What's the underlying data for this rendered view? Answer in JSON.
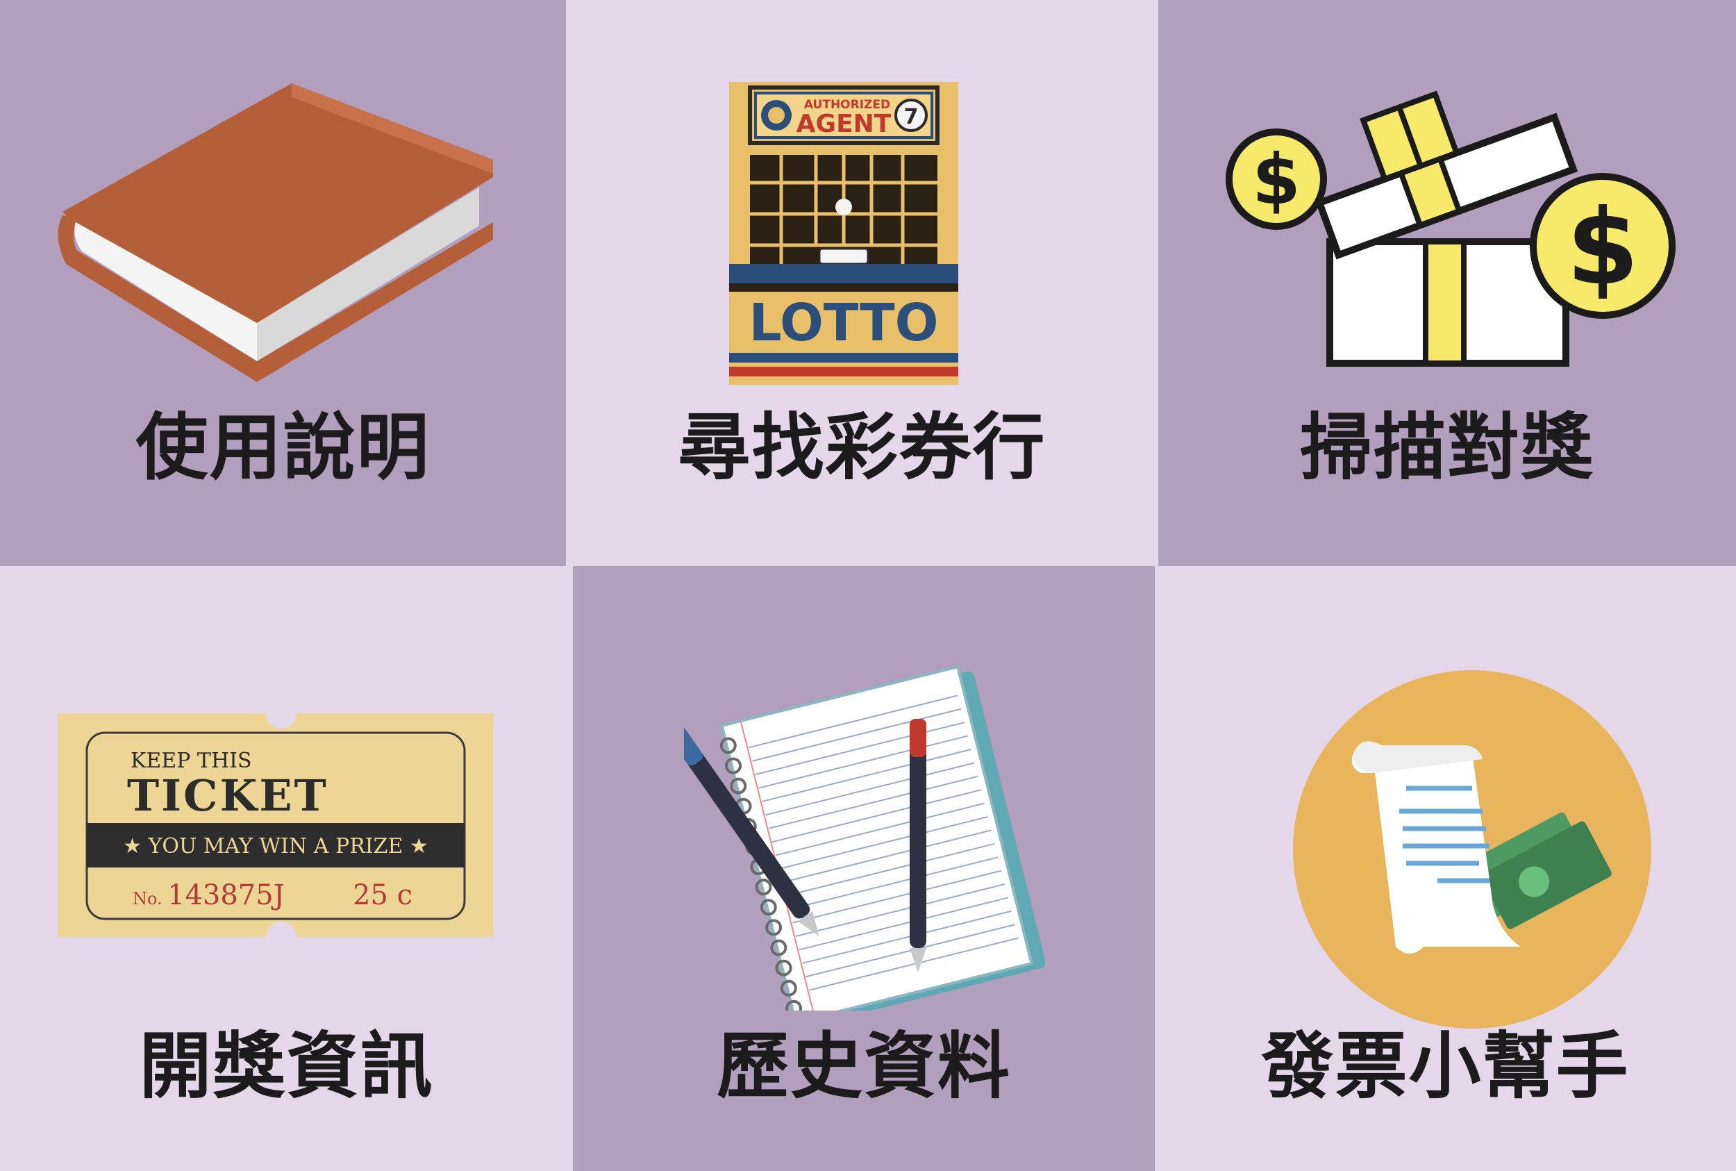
{
  "menu": {
    "items": [
      {
        "id": "instructions",
        "label": "使用說明",
        "icon": "book-icon"
      },
      {
        "id": "find-store",
        "label": "尋找彩券行",
        "icon": "lottery-store-icon"
      },
      {
        "id": "scan",
        "label": "掃描對獎",
        "icon": "gift-box-money-icon"
      },
      {
        "id": "draw-info",
        "label": "開獎資訊",
        "icon": "ticket-icon"
      },
      {
        "id": "history",
        "label": "歷史資料",
        "icon": "notebook-pens-icon"
      },
      {
        "id": "invoice-helper",
        "label": "發票小幫手",
        "icon": "receipt-money-icon"
      }
    ]
  },
  "art": {
    "store": {
      "top": "AUTHORIZED",
      "sign": "AGENT",
      "number": "7",
      "word": "LOTTO"
    },
    "ticket": {
      "line1": "KEEP THIS",
      "line2": "TICKET",
      "banner": "★ YOU MAY WIN A PRIZE ★",
      "no_prefix": "No.",
      "serial": "143875J",
      "price": "25 c"
    },
    "coin_symbol": "$"
  },
  "colors": {
    "tile_dark": "#b29ebd",
    "tile_light": "#e4d7ea"
  }
}
